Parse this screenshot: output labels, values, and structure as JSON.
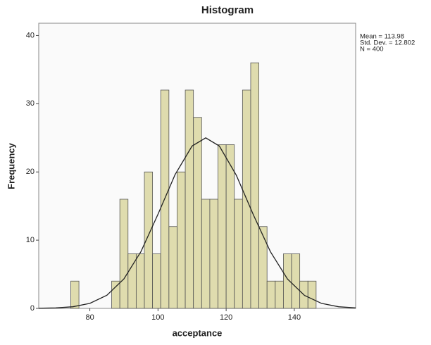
{
  "chart_data": {
    "type": "histogram",
    "title": "Histogram",
    "x_label": "acceptance",
    "y_label": "Frequency",
    "stats": [
      "Mean = 113.98",
      "Std. Dev. = 12.802",
      "N = 400"
    ],
    "bins": [
      74.4,
      76.8,
      79.2,
      81.6,
      84,
      86.4,
      88.8,
      91.2,
      93.6,
      96,
      98.4,
      100.8,
      103.2,
      105.6,
      108,
      110.4,
      112.8,
      115.2,
      117.6,
      120,
      122.4,
      124.8,
      127.2,
      129.6,
      132,
      134.4,
      136.8,
      139.2,
      141.6,
      144,
      146.4
    ],
    "counts": [
      4,
      0,
      0,
      0,
      0,
      4,
      16,
      8,
      8,
      20,
      8,
      32,
      12,
      20,
      32,
      28,
      16,
      16,
      24,
      24,
      16,
      32,
      36,
      12,
      4,
      4,
      8,
      8,
      4,
      4
    ],
    "color": "#d9d6a0",
    "normal_curve": {
      "x": [
        65,
        70,
        75,
        80,
        85,
        90,
        95,
        100,
        105,
        110,
        114,
        118,
        123,
        128,
        133,
        138,
        143,
        148,
        153,
        158
      ],
      "y": [
        0.02,
        0.07,
        0.24,
        0.74,
        1.93,
        4.33,
        8.33,
        13.8,
        19.6,
        23.8,
        25.0,
        23.8,
        19.5,
        13.7,
        8.3,
        4.3,
        1.9,
        0.73,
        0.24,
        0.07
      ]
    },
    "xlim": [
      65,
      158
    ],
    "ylim": [
      0,
      41.8
    ],
    "xticks": [
      80,
      100,
      120,
      140
    ],
    "yticks": [
      0,
      10,
      20,
      30,
      40
    ]
  }
}
